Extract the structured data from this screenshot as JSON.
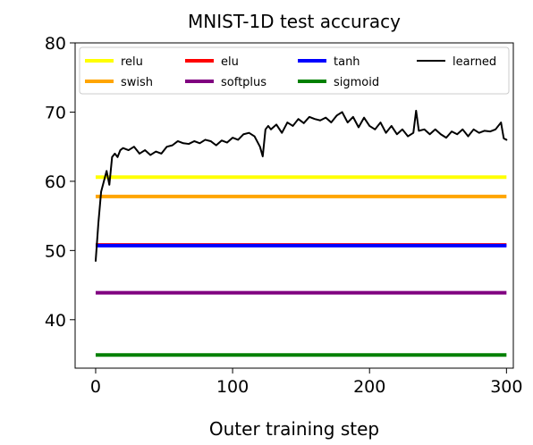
{
  "chart_data": {
    "type": "line",
    "title": "MNIST-1D test accuracy",
    "xlabel": "Outer training step",
    "ylabel": "",
    "xlim": [
      -15,
      305
    ],
    "ylim": [
      33,
      80
    ],
    "xticks": [
      0,
      100,
      200,
      300
    ],
    "xtick_labels": [
      "0",
      "100",
      "200",
      "300"
    ],
    "yticks": [
      40,
      50,
      60,
      70,
      80
    ],
    "ytick_labels": [
      "40",
      "50",
      "60",
      "70",
      "80"
    ],
    "grid": false,
    "legend": {
      "placement": "top",
      "entries": [
        {
          "name": "relu",
          "color": "#ffff00"
        },
        {
          "name": "swish",
          "color": "#ffa500"
        },
        {
          "name": "elu",
          "color": "#ff0000"
        },
        {
          "name": "softplus",
          "color": "#800080"
        },
        {
          "name": "tanh",
          "color": "#0000ff"
        },
        {
          "name": "sigmoid",
          "color": "#008000"
        },
        {
          "name": "learned",
          "color": "#000000"
        }
      ]
    },
    "series": [
      {
        "name": "relu",
        "color": "#ffff00",
        "x": [
          0,
          300
        ],
        "values": [
          60.6,
          60.6
        ]
      },
      {
        "name": "swish",
        "color": "#ffa500",
        "x": [
          0,
          300
        ],
        "values": [
          57.8,
          57.8
        ]
      },
      {
        "name": "elu",
        "color": "#ff0000",
        "x": [
          0,
          300
        ],
        "values": [
          50.8,
          50.8
        ]
      },
      {
        "name": "tanh",
        "color": "#0000ff",
        "x": [
          0,
          300
        ],
        "values": [
          50.7,
          50.7
        ]
      },
      {
        "name": "softplus",
        "color": "#800080",
        "x": [
          0,
          300
        ],
        "values": [
          43.9,
          43.9
        ]
      },
      {
        "name": "sigmoid",
        "color": "#008000",
        "x": [
          0,
          300
        ],
        "values": [
          34.9,
          34.9
        ]
      },
      {
        "name": "learned",
        "color": "#000000",
        "x": [
          0,
          2,
          4,
          6,
          8,
          10,
          12,
          14,
          16,
          18,
          20,
          24,
          28,
          32,
          36,
          40,
          44,
          48,
          52,
          56,
          60,
          64,
          68,
          72,
          76,
          80,
          84,
          88,
          92,
          96,
          100,
          104,
          108,
          112,
          116,
          120,
          122,
          124,
          126,
          128,
          132,
          136,
          140,
          144,
          148,
          152,
          156,
          160,
          164,
          168,
          172,
          176,
          180,
          184,
          188,
          192,
          196,
          200,
          204,
          208,
          212,
          216,
          220,
          224,
          228,
          232,
          234,
          236,
          240,
          244,
          248,
          252,
          256,
          260,
          264,
          268,
          272,
          276,
          280,
          284,
          288,
          292,
          296,
          298,
          300
        ],
        "values": [
          48.5,
          54.0,
          58.5,
          60.0,
          61.5,
          59.5,
          63.5,
          64.0,
          63.5,
          64.5,
          64.8,
          64.5,
          65.0,
          64.0,
          64.5,
          63.8,
          64.3,
          64.0,
          65.0,
          65.2,
          65.8,
          65.5,
          65.4,
          65.8,
          65.5,
          66.0,
          65.8,
          65.2,
          65.9,
          65.6,
          66.3,
          66.0,
          66.8,
          67.0,
          66.5,
          65.0,
          63.6,
          67.5,
          68.0,
          67.5,
          68.2,
          67.0,
          68.5,
          68.0,
          69.0,
          68.4,
          69.3,
          69.0,
          68.8,
          69.2,
          68.5,
          69.5,
          70.0,
          68.5,
          69.3,
          67.8,
          69.2,
          68.0,
          67.5,
          68.5,
          67.0,
          68.0,
          66.8,
          67.5,
          66.5,
          67.0,
          70.2,
          67.3,
          67.5,
          66.8,
          67.5,
          66.8,
          66.3,
          67.2,
          66.8,
          67.5,
          66.5,
          67.5,
          67.0,
          67.3,
          67.2,
          67.5,
          68.5,
          66.2,
          66.0
        ]
      }
    ]
  }
}
